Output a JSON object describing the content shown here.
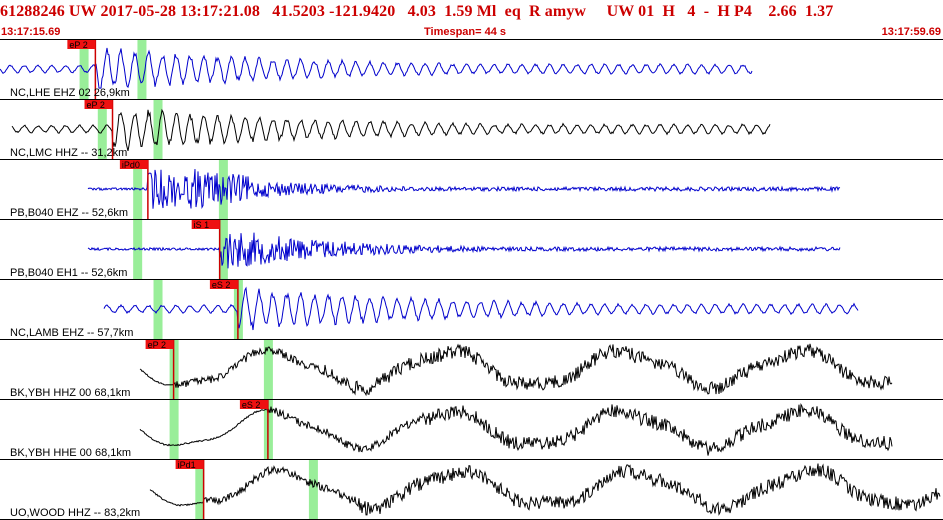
{
  "header": {
    "title": "61288246 UW 2017-05-28 13:17:21.08   41.5203 -121.9420   4.03  1.59 Ml  eq  R amyw     UW 01  H   4  -  H P4    2.66  1.37",
    "start_time": "13:17:15.69",
    "timespan": "Timespan=  44 s",
    "end_time": "13:17:59.69"
  },
  "colors": {
    "header_text": "#cc0000",
    "pick_fill": "#ee1111",
    "theoretical": "#99ee99",
    "trace_blue": "#0000cc",
    "trace_black": "#000000"
  },
  "traces": [
    {
      "label": "NC,LHE EHZ 02 26,9km",
      "color": "blue",
      "picks": [
        {
          "label": "eP 2",
          "t": 4.45
        }
      ],
      "theoretical": [
        3.9,
        6.6
      ]
    },
    {
      "label": "NC,LMC HHZ -- 31,2km",
      "color": "black",
      "picks": [
        {
          "label": "eP 2",
          "t": 5.25
        }
      ],
      "theoretical": [
        4.75,
        7.35
      ]
    },
    {
      "label": "PB,B040 EHZ -- 52,6km",
      "color": "blue",
      "picks": [
        {
          "label": "iPd0",
          "t": 6.9
        }
      ],
      "theoretical": [
        6.4,
        10.4
      ]
    },
    {
      "label": "PB,B040 EH1 -- 52,6km",
      "color": "blue",
      "picks": [
        {
          "label": "iS 1",
          "t": 10.25
        }
      ],
      "theoretical": [
        6.4,
        10.4
      ]
    },
    {
      "label": "NC,LAMB EHZ -- 57,7km",
      "color": "blue",
      "picks": [
        {
          "label": "eS 2",
          "t": 11.1
        }
      ],
      "theoretical": [
        7.35,
        11.1
      ]
    },
    {
      "label": "BK,YBH HHZ 00 68,1km",
      "color": "black",
      "picks": [
        {
          "label": "eP 2",
          "t": 8.1
        }
      ],
      "theoretical": [
        8.1,
        12.5
      ]
    },
    {
      "label": "BK,YBH HHE 00 68,1km",
      "color": "black",
      "picks": [
        {
          "label": "eS 2",
          "t": 12.5
        }
      ],
      "theoretical": [
        8.1,
        12.5
      ]
    },
    {
      "label": "UO,WOOD HHZ -- 83,2km",
      "color": "black",
      "picks": [
        {
          "label": "iPd1",
          "t": 9.5
        }
      ],
      "theoretical": [
        9.3,
        14.6
      ]
    }
  ]
}
